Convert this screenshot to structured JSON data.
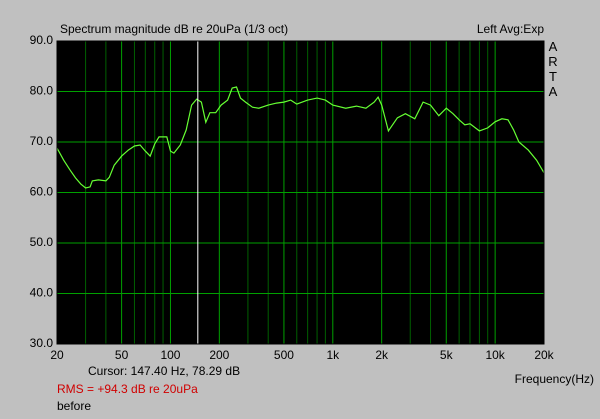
{
  "chart_data": {
    "type": "line",
    "title": "Spectrum magnitude dB re 20uPa (1/3 oct)",
    "channel_label": "Left Avg:Exp",
    "brand": "ARTA",
    "x_label": "Frequency(Hz)",
    "cursor": {
      "x": 147.4,
      "label": "Cursor:  147.40 Hz, 78.29 dB"
    },
    "rms_label": "RMS =  +94.3 dB re 20uPa",
    "note": "before",
    "x_log": true,
    "grid": true,
    "xlim": [
      20,
      20000
    ],
    "ylim": [
      30,
      90
    ],
    "xticks": [
      20,
      50,
      100,
      200,
      500,
      {
        "value": 1000,
        "label": "1k"
      },
      {
        "value": 2000,
        "label": "2k"
      },
      {
        "value": 5000,
        "label": "5k"
      },
      {
        "value": 10000,
        "label": "10k"
      },
      {
        "value": 20000,
        "label": "20k"
      }
    ],
    "x_minor_ticks": [
      30,
      40,
      60,
      70,
      80,
      90,
      300,
      400,
      600,
      700,
      800,
      900,
      3000,
      4000,
      6000,
      7000,
      8000,
      9000
    ],
    "yticks": [
      {
        "value": 30,
        "label": "30.0"
      },
      {
        "value": 40,
        "label": "40.0"
      },
      {
        "value": 50,
        "label": "50.0"
      },
      {
        "value": 60,
        "label": "60.0"
      },
      {
        "value": 70,
        "label": "70.0"
      },
      {
        "value": 80,
        "label": "80.0"
      },
      {
        "value": 90,
        "label": "90.0"
      }
    ],
    "series": [
      {
        "name": "Left",
        "color": "#66ff33",
        "x": [
          20,
          22,
          24,
          26,
          28,
          30,
          32,
          33,
          36,
          40,
          42,
          45,
          50,
          55,
          60,
          65,
          70,
          75,
          80,
          85,
          95,
          100,
          105,
          115,
          125,
          135,
          145,
          155,
          165,
          175,
          190,
          205,
          225,
          240,
          255,
          270,
          290,
          320,
          350,
          400,
          450,
          500,
          550,
          600,
          700,
          800,
          900,
          1000,
          1200,
          1400,
          1600,
          1800,
          1900,
          2000,
          2200,
          2500,
          2800,
          3200,
          3600,
          4000,
          4500,
          5000,
          5500,
          6000,
          6500,
          7000,
          8000,
          9000,
          10000,
          11000,
          12000,
          13000,
          14000,
          16000,
          18000,
          20000
        ],
        "values": [
          68.8,
          66.4,
          64.5,
          62.9,
          61.7,
          60.9,
          61.1,
          62.3,
          62.5,
          62.3,
          63,
          65.4,
          67.2,
          68.4,
          69.2,
          69.4,
          68.2,
          67.2,
          69.6,
          71,
          71,
          68.2,
          67.8,
          69.4,
          72.4,
          77.3,
          78.5,
          77.9,
          73.9,
          75.8,
          75.8,
          77.3,
          78.3,
          80.7,
          80.9,
          78.7,
          77.9,
          76.9,
          76.7,
          77.3,
          77.7,
          77.9,
          78.3,
          77.5,
          78.3,
          78.7,
          78.3,
          77.3,
          76.7,
          77.1,
          76.7,
          77.9,
          78.9,
          77.3,
          72.2,
          74.8,
          75.6,
          74.6,
          77.9,
          77.3,
          75.2,
          76.7,
          75.6,
          74.4,
          73.4,
          73.6,
          72.2,
          72.8,
          74,
          74.6,
          74.4,
          72.4,
          70,
          68.4,
          66.4,
          63.9
        ]
      }
    ]
  }
}
